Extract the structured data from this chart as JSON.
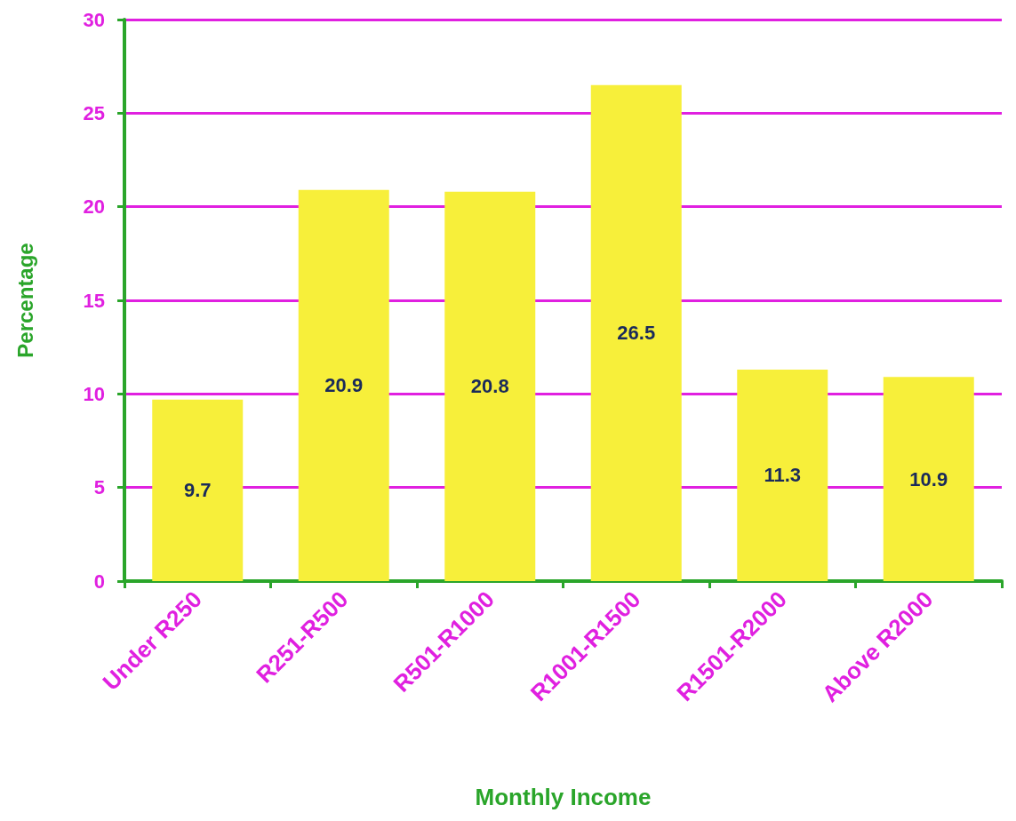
{
  "chart_data": {
    "type": "bar",
    "xlabel": "Monthly Income",
    "ylabel": "Percentage",
    "categories": [
      "Under R250",
      "R251-R500",
      "R501-R1000",
      "R1001-R1500",
      "R1501-R2000",
      "Above R2000"
    ],
    "values": [
      9.7,
      20.9,
      20.8,
      26.5,
      11.3,
      10.9
    ],
    "color": "#f7ef3a",
    "ylim": [
      0,
      30
    ],
    "yticks": [
      0,
      5,
      10,
      15,
      20,
      25,
      30
    ],
    "grid": "y",
    "data_labels": true
  }
}
